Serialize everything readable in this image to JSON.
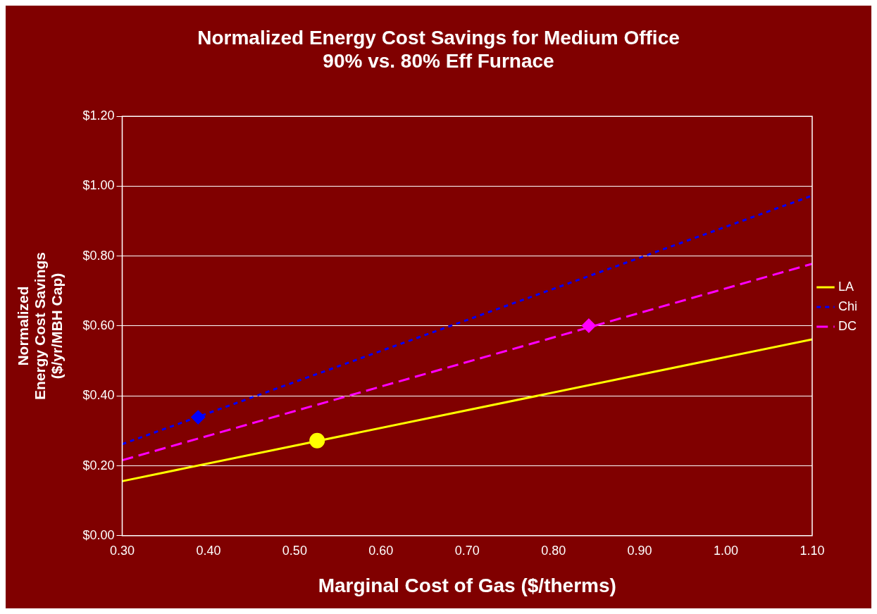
{
  "chart_data": {
    "type": "line",
    "title": "Normalized Energy Cost Savings for Medium Office\n90% vs. 80% Eff Furnace",
    "xlabel": "Marginal Cost of Gas ($/therms)",
    "ylabel": "Normalized\nEnergy Cost Savings\n($/yr/MBH Cap)",
    "xlim": [
      0.3,
      1.1
    ],
    "xticks": [
      {
        "value": 0.3,
        "label": "0.30"
      },
      {
        "value": 0.4,
        "label": "0.40"
      },
      {
        "value": 0.5,
        "label": "0.50"
      },
      {
        "value": 0.6,
        "label": "0.60"
      },
      {
        "value": 0.7,
        "label": "0.70"
      },
      {
        "value": 0.8,
        "label": "0.80"
      },
      {
        "value": 0.9,
        "label": "0.90"
      },
      {
        "value": 1.0,
        "label": "1.00"
      },
      {
        "value": 1.1,
        "label": "1.10"
      }
    ],
    "ylim": [
      0,
      1.2
    ],
    "yticks": [
      {
        "value": 0,
        "label": "$0.00"
      },
      {
        "value": 0.2,
        "label": "$0.20"
      },
      {
        "value": 0.4,
        "label": "$0.40"
      },
      {
        "value": 0.6,
        "label": "$0.60"
      },
      {
        "value": 0.8,
        "label": "$0.80"
      },
      {
        "value": 1.0,
        "label": "$1.00"
      },
      {
        "value": 1.2,
        "label": "$1.20"
      }
    ],
    "grid": "y",
    "legend": "right",
    "series": [
      {
        "name": "LA",
        "color": "#ffff00",
        "x": [
          0.3,
          1.1
        ],
        "values": [
          0.156,
          0.562
        ],
        "line_style": "solid",
        "marker": "none"
      },
      {
        "name": "Chi",
        "color": "#0000ff",
        "x": [
          0.3,
          1.1
        ],
        "values": [
          0.262,
          0.973
        ],
        "line_style": "dotted",
        "marker": "none"
      },
      {
        "name": "DC",
        "color": "#ff00ff",
        "x": [
          0.3,
          1.1
        ],
        "values": [
          0.216,
          0.778
        ],
        "line_style": "dashed",
        "marker": "none"
      },
      {
        "type": "scatter",
        "color": "#ffff00",
        "x": [
          0.526
        ],
        "values": [
          0.272
        ],
        "marker": "circle"
      },
      {
        "type": "scatter",
        "color": "#0000ff",
        "x": [
          0.388
        ],
        "values": [
          0.339
        ],
        "marker": "diamond"
      },
      {
        "type": "scatter",
        "color": "#ff00ff",
        "x": [
          0.841
        ],
        "values": [
          0.601
        ],
        "marker": "diamond"
      }
    ]
  }
}
